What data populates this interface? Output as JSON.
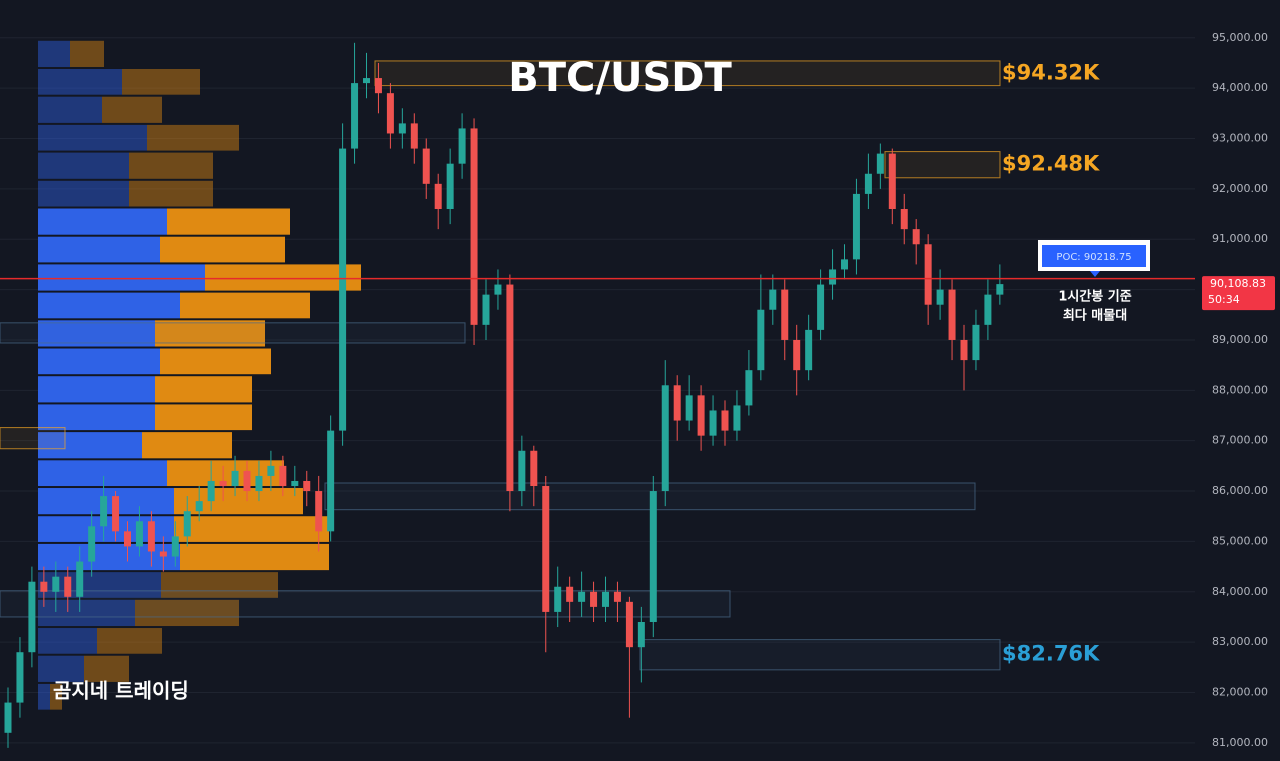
{
  "chart_data": {
    "type": "candlestick",
    "title": "BTC/USDT",
    "watermark": "곰지네 트레이딩",
    "ylim": [
      80640,
      95750
    ],
    "yticks": [
      {
        "value": 95000,
        "label": "95,000.00"
      },
      {
        "value": 94000,
        "label": "94,000.00"
      },
      {
        "value": 93000,
        "label": "93,000.00"
      },
      {
        "value": 92000,
        "label": "92,000.00"
      },
      {
        "value": 91000,
        "label": "91,000.00"
      },
      {
        "value": 90000,
        "label": "90,000.00"
      },
      {
        "value": 89000,
        "label": "89,000.00"
      },
      {
        "value": 88000,
        "label": "88,000.00"
      },
      {
        "value": 87000,
        "label": "87,000.00"
      },
      {
        "value": 86000,
        "label": "86,000.00"
      },
      {
        "value": 85000,
        "label": "85,000.00"
      },
      {
        "value": 84000,
        "label": "84,000.00"
      },
      {
        "value": 83000,
        "label": "83,000.00"
      },
      {
        "value": 82000,
        "label": "82,000.00"
      },
      {
        "value": 81000,
        "label": "81,000.00"
      }
    ],
    "grid": true,
    "up_color": "#26a69a",
    "down_color": "#ef5350",
    "open": [
      81200,
      81800,
      82800,
      84200,
      84000,
      84300,
      83900,
      84600,
      85300,
      85900,
      85200,
      84900,
      85400,
      84800,
      84700,
      85100,
      85600,
      85800,
      86200,
      86100,
      86400,
      86000,
      86300,
      86500,
      86100,
      86200,
      86000,
      85200,
      87200,
      92800,
      94100,
      94200,
      93900,
      93100,
      93300,
      92800,
      92100,
      91600,
      92500,
      93200,
      89300,
      89900,
      90100,
      86000,
      86800,
      86100,
      83600,
      84100,
      83800,
      84000,
      83700,
      84000,
      83800,
      82900,
      83400,
      86000,
      88100,
      87400,
      87900,
      87100,
      87600,
      87200,
      87700,
      88400,
      89600,
      90000,
      89000,
      88400,
      89200,
      90100,
      90400,
      90600,
      91900,
      92300,
      92700,
      91600,
      91200,
      90900,
      89700,
      90000,
      89000,
      88600,
      89300,
      89900
    ],
    "high": [
      82100,
      83100,
      84500,
      84500,
      84600,
      84500,
      84900,
      85600,
      86300,
      86000,
      85400,
      85700,
      85600,
      85100,
      85400,
      85900,
      86100,
      86600,
      86500,
      86700,
      86600,
      86600,
      86800,
      86700,
      86500,
      86400,
      86300,
      87500,
      93300,
      94900,
      94700,
      94500,
      94100,
      93600,
      93500,
      93000,
      92300,
      92800,
      93500,
      93400,
      90200,
      90400,
      90300,
      87100,
      86900,
      86300,
      84500,
      84300,
      84400,
      84200,
      84300,
      84200,
      83900,
      83700,
      86300,
      88600,
      88300,
      88300,
      88100,
      87900,
      87800,
      88000,
      88800,
      90300,
      90300,
      90200,
      89300,
      89500,
      90400,
      90800,
      90900,
      92200,
      92700,
      92900,
      92800,
      91900,
      91400,
      91100,
      90400,
      90200,
      89300,
      89600,
      90200,
      90500
    ],
    "low": [
      80900,
      81500,
      82500,
      83700,
      83600,
      83600,
      83600,
      84300,
      85000,
      85000,
      84600,
      84700,
      84500,
      84400,
      84500,
      84900,
      85400,
      85600,
      85800,
      85900,
      85800,
      85800,
      86000,
      85900,
      85900,
      85700,
      84800,
      85000,
      86900,
      92500,
      93800,
      93500,
      92800,
      92800,
      92500,
      91800,
      91200,
      91300,
      92200,
      88900,
      89000,
      89600,
      85600,
      85700,
      85700,
      82800,
      83300,
      83400,
      83500,
      83400,
      83400,
      83400,
      81500,
      82200,
      83100,
      85700,
      87000,
      87200,
      86800,
      86900,
      86900,
      87000,
      87500,
      88200,
      89300,
      88600,
      87900,
      88200,
      89000,
      89800,
      90200,
      90300,
      91600,
      92000,
      91300,
      90900,
      90500,
      89300,
      89400,
      88600,
      88000,
      88400,
      89000,
      89700
    ],
    "close": [
      81800,
      82800,
      84200,
      84000,
      84300,
      83900,
      84600,
      85300,
      85900,
      85200,
      84900,
      85400,
      84800,
      84700,
      85100,
      85600,
      85800,
      86200,
      86100,
      86400,
      86000,
      86300,
      86500,
      86100,
      86200,
      86000,
      85200,
      87200,
      92800,
      94100,
      94200,
      93900,
      93100,
      93300,
      92800,
      92100,
      91600,
      92500,
      93200,
      89300,
      89900,
      90100,
      86000,
      86800,
      86100,
      83600,
      84100,
      83800,
      84000,
      83700,
      84000,
      83800,
      82900,
      83400,
      86000,
      88100,
      87400,
      87900,
      87100,
      87600,
      87200,
      87700,
      88400,
      89600,
      90000,
      89000,
      88400,
      89200,
      90100,
      90400,
      90600,
      91900,
      92300,
      92700,
      91600,
      91200,
      90900,
      89700,
      90000,
      89000,
      88600,
      89300,
      89900,
      90108.83
    ],
    "volume_profile": {
      "bins": [
        94960,
        94400,
        93850,
        93290,
        92740,
        92180,
        91630,
        91070,
        90520,
        89960,
        89410,
        88850,
        88300,
        87740,
        87190,
        86630,
        86080,
        85520,
        84970,
        84410,
        83860,
        83300,
        82750,
        82190,
        81640
      ],
      "buy": [
        32,
        84,
        64,
        109,
        91,
        91,
        129,
        122,
        167,
        142,
        117,
        122,
        117,
        117,
        104,
        129,
        136,
        136,
        142,
        123,
        97,
        59,
        46,
        12
      ],
      "sell": [
        34,
        78,
        60,
        92,
        84,
        84,
        123,
        125,
        156,
        130,
        110,
        111,
        97,
        97,
        90,
        117,
        129,
        155,
        149,
        117,
        104,
        65,
        45,
        12
      ],
      "buy_color": "#2f62e6",
      "sell_color": "#e08a12",
      "value_area": [
        84410,
        91630
      ]
    },
    "zones": [
      {
        "range": [
          94050,
          94540
        ],
        "label": "$94.32K",
        "color": "#f5a623"
      },
      {
        "range": [
          92220,
          92740
        ],
        "label": "$92.48K",
        "color": "#f5a623"
      },
      {
        "range": [
          88940,
          89340
        ],
        "color": "#4a6b8a"
      },
      {
        "range": [
          86840,
          87260
        ],
        "color": "#f5a623"
      },
      {
        "range": [
          85630,
          86160
        ],
        "color": "#4a6b8a"
      },
      {
        "range": [
          83500,
          84020
        ],
        "color": "#4a6b8a"
      },
      {
        "range": [
          82450,
          83050
        ],
        "label": "$82.76K",
        "color": "#2a9fd6"
      }
    ],
    "poc": {
      "value": 90218.75,
      "label": "POC: 90218.75",
      "color": "#e52b2b"
    },
    "note": [
      "1시간봉 기준",
      "최다 매물대"
    ],
    "last_price": {
      "value": 90108.83,
      "label": "90,108.83",
      "countdown": "50:34",
      "color": "#f23645"
    }
  }
}
